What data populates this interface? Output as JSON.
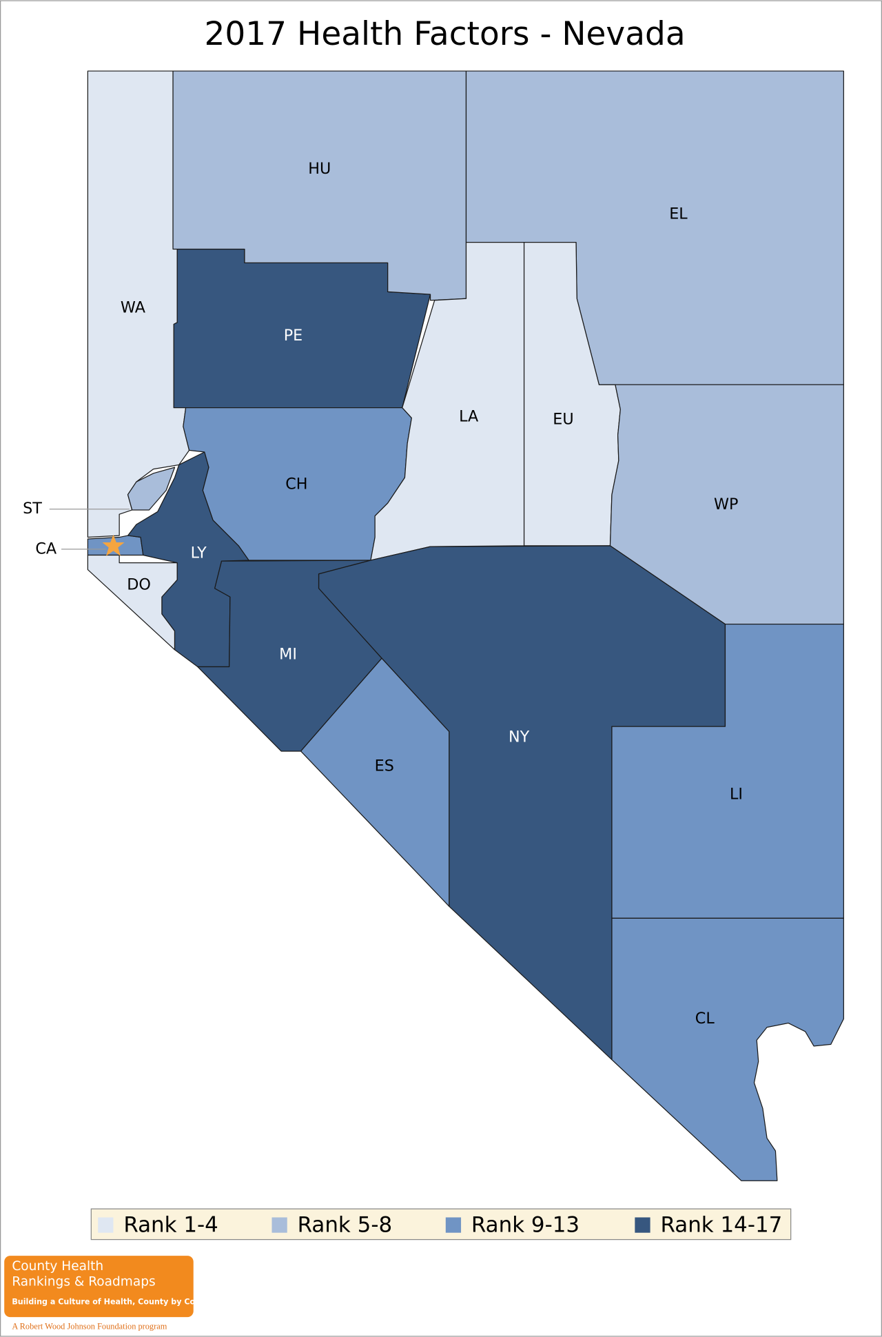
{
  "title": "2017 Health Factors - Nevada",
  "legend": [
    {
      "label": "Rank 1-4",
      "color": "#dfe7f2"
    },
    {
      "label": "Rank 5-8",
      "color": "#a9bdda"
    },
    {
      "label": "Rank 9-13",
      "color": "#7094c4"
    },
    {
      "label": "Rank 14-17",
      "color": "#37577f"
    }
  ],
  "counties": [
    {
      "label": "WA",
      "color": "#dfe7f2"
    },
    {
      "label": "ST",
      "color": "#a9bdda"
    },
    {
      "label": "CA",
      "color": "#7094c4"
    },
    {
      "label": "DO",
      "color": "#dfe7f2"
    },
    {
      "label": "LY",
      "color": "#37577f"
    },
    {
      "label": "CH",
      "color": "#7094c4"
    },
    {
      "label": "PE",
      "color": "#37577f"
    },
    {
      "label": "HU",
      "color": "#a9bdda"
    },
    {
      "label": "EL",
      "color": "#a9bdda"
    },
    {
      "label": "LA",
      "color": "#dfe7f2"
    },
    {
      "label": "EU",
      "color": "#dfe7f2"
    },
    {
      "label": "WP",
      "color": "#a9bdda"
    },
    {
      "label": "NY",
      "color": "#37577f"
    },
    {
      "label": "MI",
      "color": "#37577f"
    },
    {
      "label": "ES",
      "color": "#7094c4"
    },
    {
      "label": "LI",
      "color": "#7094c4"
    },
    {
      "label": "CL",
      "color": "#7094c4"
    }
  ],
  "logo": {
    "line1": "County Health",
    "line2": "Rankings & Roadmaps",
    "tagline": "Building a Culture of Health, County by County",
    "program": "A Robert Wood Johnson Foundation program"
  }
}
